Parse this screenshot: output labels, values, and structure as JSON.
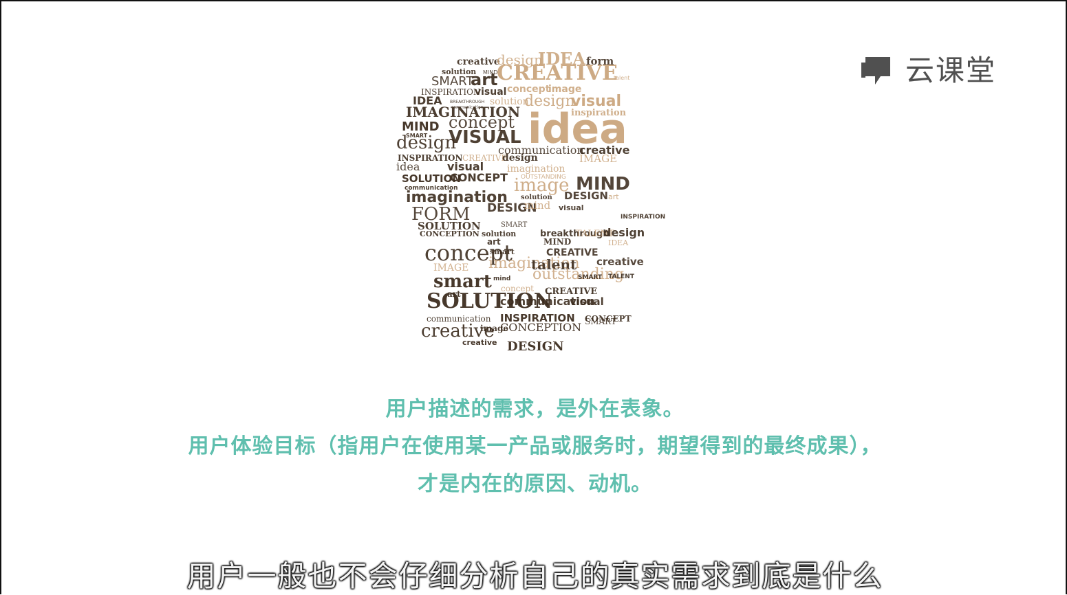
{
  "brand": {
    "logo_text": "云课堂",
    "logo_icon": "chat-bubble-icon",
    "logo_color": "#505050"
  },
  "illustration": {
    "words": [
      "creative",
      "design",
      "IDEA",
      "form",
      "solution",
      "MIND",
      "SMART",
      "art",
      "CREATIVE",
      "talent",
      "INSPIRATION",
      "visual",
      "concept",
      "image",
      "IDEA",
      "BREAKTHROUGH",
      "communication",
      "solution",
      "design",
      "visual",
      "IMAGINATION",
      "inspiration",
      "MIND",
      "concept",
      "VISUAL",
      "idea",
      "design",
      "SMART",
      "communication",
      "INSPIRATION",
      "CREATIVE",
      "design",
      "IMAGE",
      "creative",
      "idea",
      "visual",
      "imagination",
      "SOLUTION",
      "CONCEPT",
      "OUTSTANDING",
      "image",
      "MIND",
      "communication",
      "imagination",
      "solution",
      "DESIGN",
      "art",
      "FORM",
      "DESIGN",
      "mind",
      "visual",
      "INSPIRATION",
      "SOLUTION",
      "SMART",
      "CONCEPTION",
      "solution",
      "breakthrough",
      "TALENT",
      "design",
      "art",
      "MIND",
      "IDEA",
      "concept",
      "smart",
      "CREATIVE",
      "IMAGE",
      "imagination",
      "talent",
      "creative",
      "smart",
      "mind",
      "outstanding",
      "SMART",
      "TALENT",
      "art",
      "concept",
      "CREATIVE",
      "communication",
      "visual",
      "SOLUTION",
      "communication",
      "INSPIRATION",
      "CONCEPT",
      "creative",
      "image",
      "CONCEPTION",
      "SMART",
      "creative",
      "DESIGN"
    ]
  },
  "content": {
    "line1": "用户描述的需求，是外在表象。",
    "line2": "用户体验目标（指用户在使用某一产品或服务时，期望得到的最终成果），",
    "line3": "才是内在的原因、动机。"
  },
  "subtitle": "用户一般也不会仔细分析自己的真实需求到底是什么",
  "colors": {
    "accent_text": "#5fbfae",
    "word_dark": "#3a2a1c",
    "word_light": "#c9a37a"
  }
}
